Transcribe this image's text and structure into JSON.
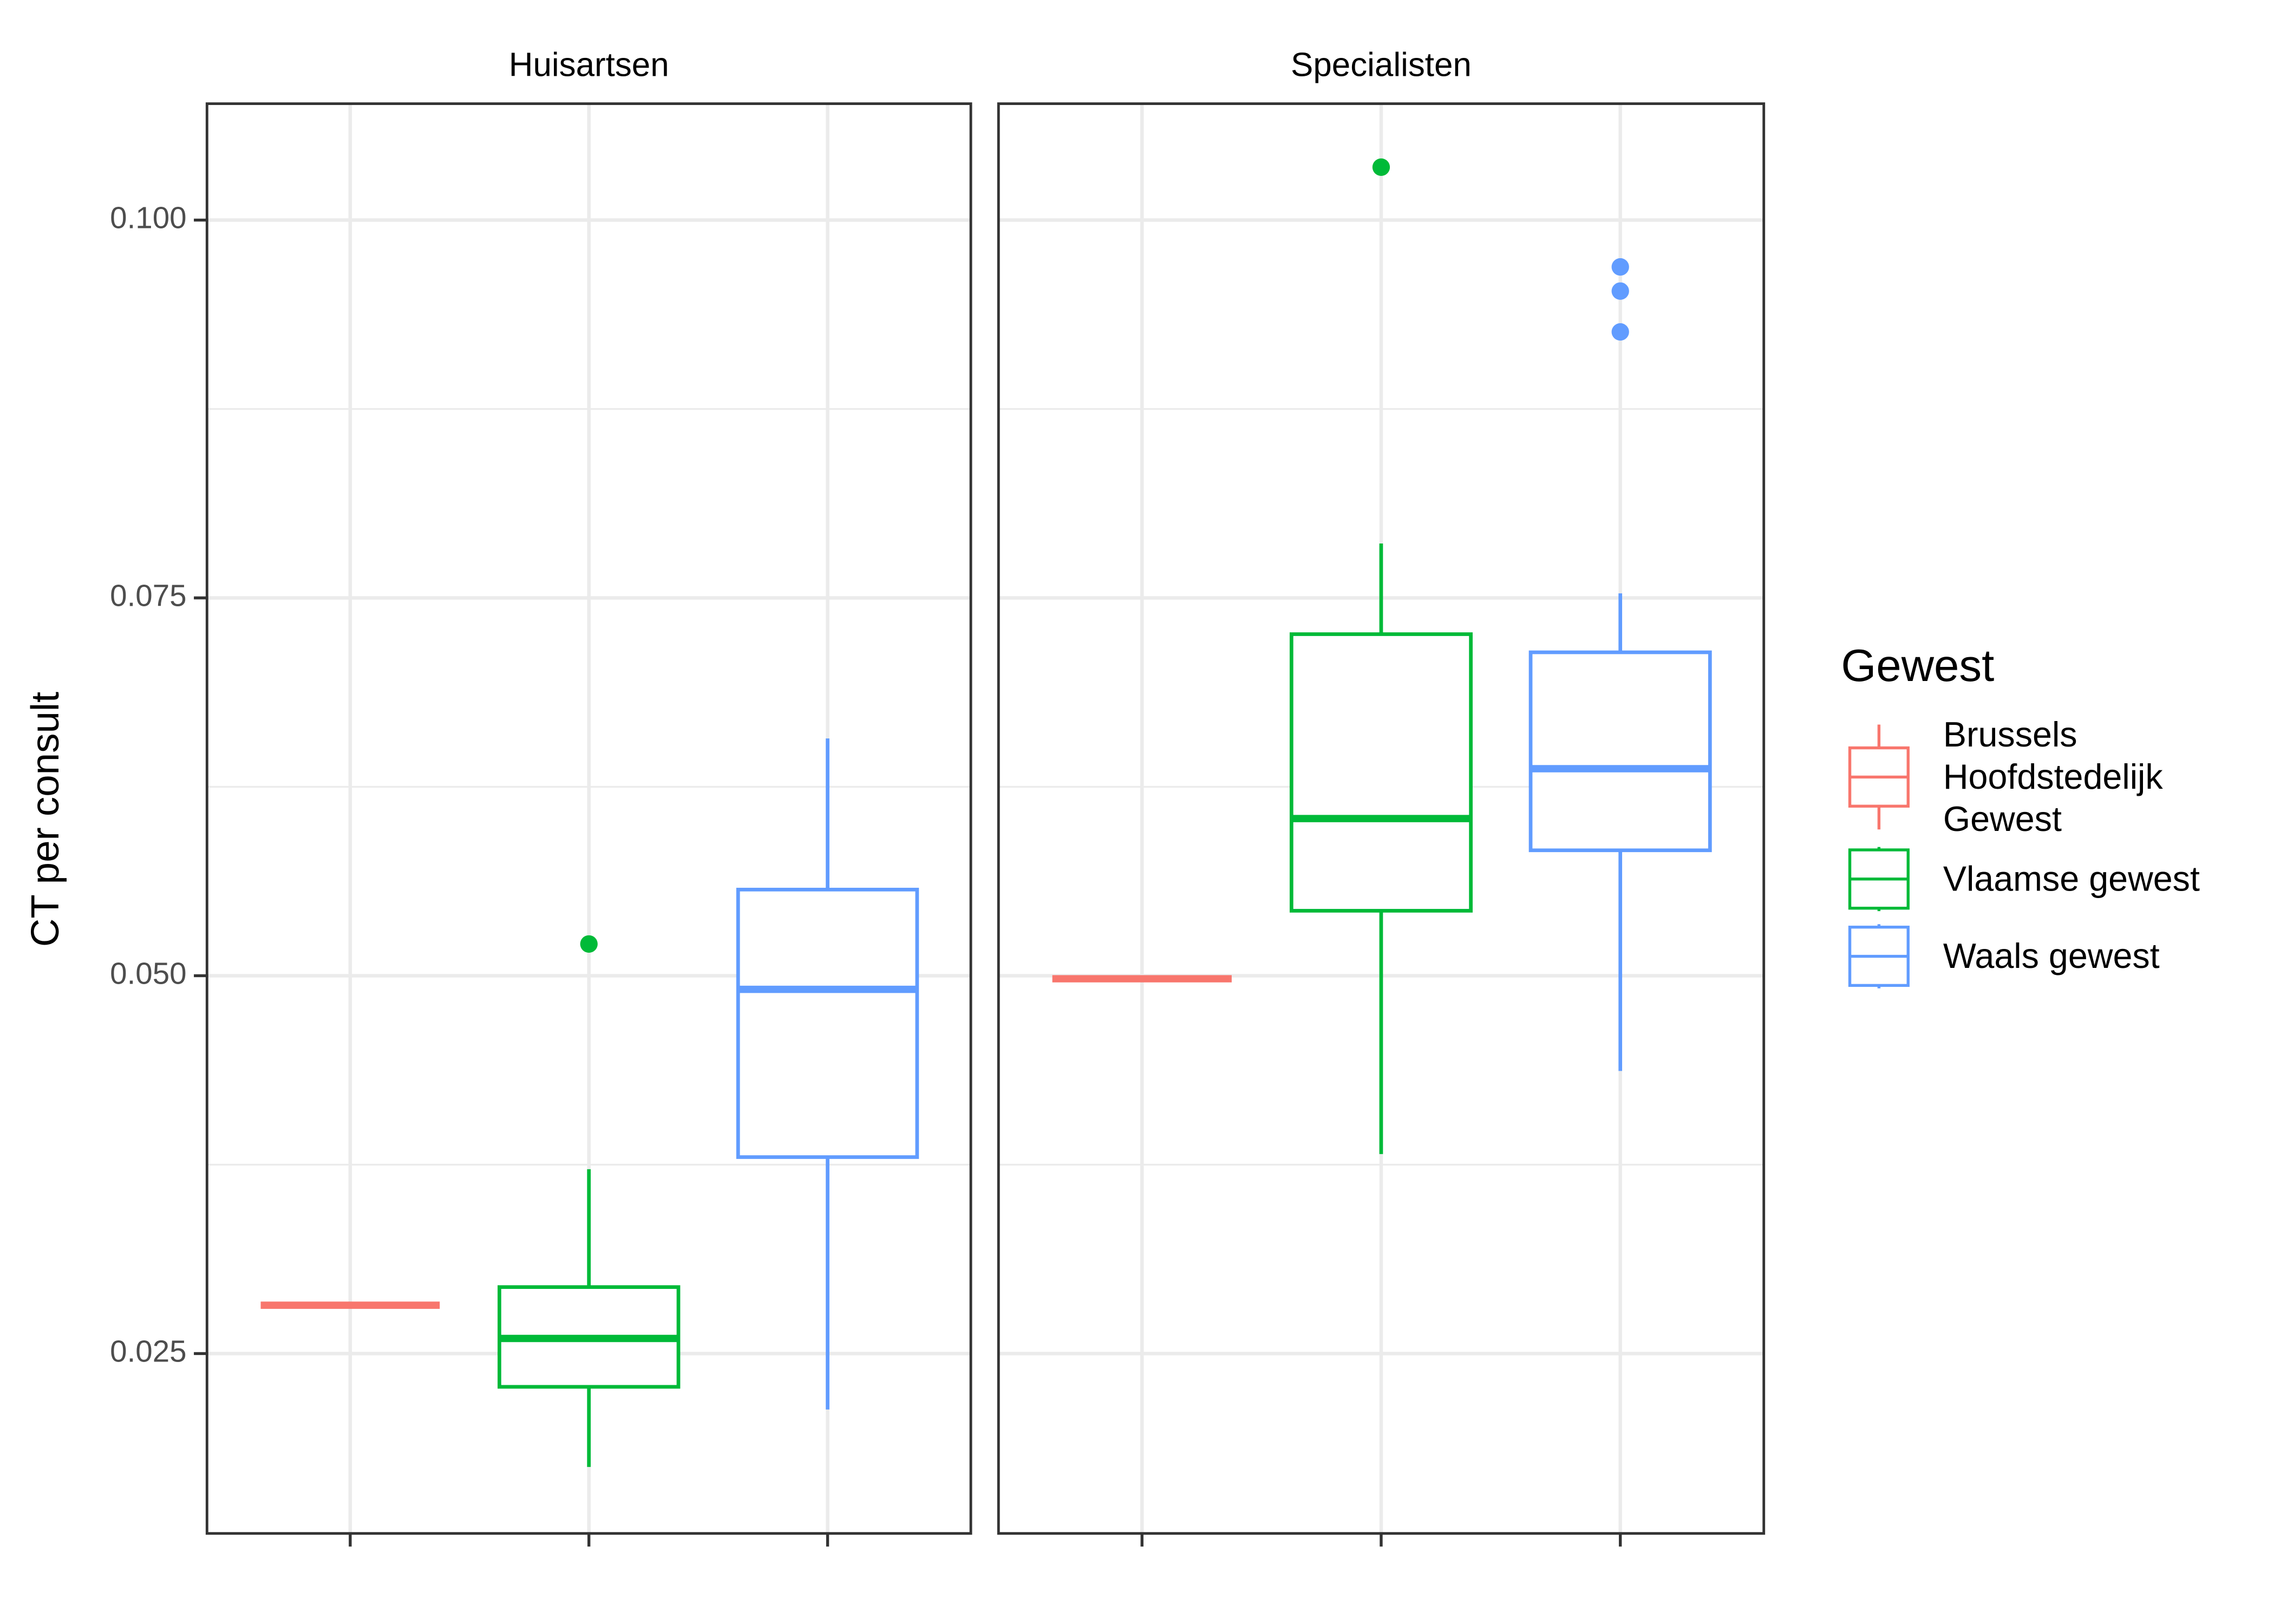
{
  "chart_data": {
    "type": "box",
    "y_label": "CT per consult",
    "legend_title": "Gewest",
    "series": [
      {
        "name": "Brussels Hoofdstedelijk Gewest",
        "color": "#f8766d"
      },
      {
        "name": "Vlaamse gewest",
        "color": "#00ba38"
      },
      {
        "name": "Waals gewest",
        "color": "#619cff"
      }
    ],
    "categories": [
      null,
      null,
      null
    ],
    "ylim": [
      0.0131,
      0.1077
    ],
    "yticks": [
      0.025,
      {
        "value": 0.05,
        "label": "0.050"
      },
      0.075,
      {
        "value": 0.1,
        "label": "0.100"
      }
    ],
    "y_minor_grid": [
      0.0375,
      0.0625,
      0.0875
    ],
    "grid": true,
    "facets": [
      {
        "title": "Huisartsen",
        "boxes": [
          {
            "low": 0.0282,
            "q1": 0.0282,
            "median": 0.0282,
            "q3": 0.0282,
            "high": 0.0282,
            "outliers": []
          },
          {
            "low": 0.0175,
            "q1": 0.0228,
            "median": 0.026,
            "q3": 0.0294,
            "high": 0.0372,
            "outliers": [
              0.0521
            ]
          },
          {
            "low": 0.0213,
            "q1": 0.038,
            "median": 0.0491,
            "q3": 0.0557,
            "high": 0.0657,
            "outliers": []
          }
        ]
      },
      {
        "title": "Specialisten",
        "boxes": [
          {
            "low": 0.0498,
            "q1": 0.0498,
            "median": 0.0498,
            "q3": 0.0498,
            "high": 0.0498,
            "outliers": []
          },
          {
            "low": 0.0382,
            "q1": 0.0543,
            "median": 0.0604,
            "q3": 0.0726,
            "high": 0.0786,
            "outliers": [
              0.1035
            ]
          },
          {
            "low": 0.0437,
            "q1": 0.0583,
            "median": 0.0637,
            "q3": 0.0714,
            "high": 0.0753,
            "outliers": [
              0.0969,
              0.0953,
              0.0926
            ]
          }
        ]
      }
    ]
  }
}
